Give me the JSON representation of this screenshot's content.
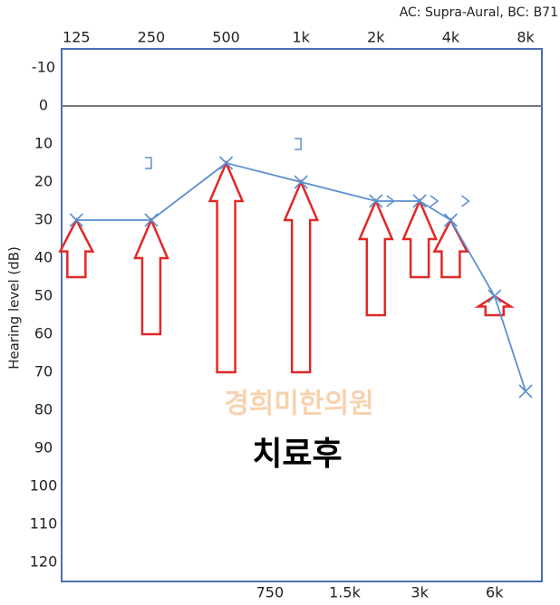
{
  "chart_data": {
    "type": "line",
    "subtitle": "AC: Supra-Aural, BC: B71",
    "ylabel": "Hearing level (dB)",
    "log_x": true,
    "xlim": [
      109,
      9300
    ],
    "xticks": [
      125,
      250,
      500,
      {
        "value": 1000,
        "label": "1k"
      },
      {
        "value": 2000,
        "label": "2k"
      },
      {
        "value": 4000,
        "label": "4k"
      },
      {
        "value": 8000,
        "label": "8k"
      }
    ],
    "xticks_bottom": [
      750,
      {
        "value": 1500,
        "label": "1.5k"
      },
      {
        "value": 3000,
        "label": "3k"
      },
      {
        "value": 6000,
        "label": "6k"
      }
    ],
    "ylim": [
      -15,
      125
    ],
    "y_reversed": true,
    "yticks": [
      -10,
      0,
      10,
      20,
      30,
      40,
      50,
      60,
      70,
      80,
      90,
      100,
      110,
      120
    ],
    "grid": false,
    "x": [
      125,
      250,
      500,
      1000,
      2000,
      3000,
      4000,
      6000,
      8000
    ],
    "values": [
      30,
      30,
      15,
      20,
      25,
      25,
      30,
      50,
      75
    ],
    "color": "#5b8fd0",
    "arrow_from": [
      45,
      60,
      70,
      70,
      55,
      45,
      45,
      55,
      null
    ],
    "arrow_color": "#e02828",
    "bc_bracket": {
      "x": [
        250,
        1000
      ],
      "values": [
        15,
        10
      ]
    },
    "bc_masked": {
      "x": [
        2000,
        3000,
        4000
      ],
      "values": [
        25,
        25,
        25
      ]
    },
    "annotations": [
      "경희미한의원",
      "치료후"
    ]
  }
}
